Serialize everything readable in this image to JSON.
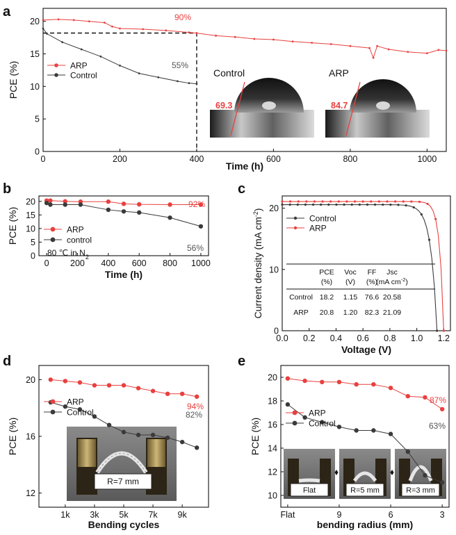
{
  "colors": {
    "arp": "#e8403f",
    "control": "#3a3a3a",
    "dashed": "#000000",
    "annot_arp": "#e8403f",
    "annot_control": "#555555"
  },
  "chart_data": [
    {
      "panel": "a",
      "type": "line",
      "xlabel": "Time (h)",
      "ylabel": "PCE (%)",
      "xlim": [
        0,
        1050
      ],
      "ylim": [
        0,
        22
      ],
      "xticks": [
        0,
        200,
        400,
        600,
        800,
        1000
      ],
      "yticks": [
        0,
        5,
        10,
        15,
        20
      ],
      "legend": [
        "ARP",
        "Control"
      ],
      "legend_position": "left-middle",
      "annotations": [
        "90%",
        "55%"
      ],
      "series": [
        {
          "name": "ARP",
          "x": [
            0,
            40,
            80,
            120,
            160,
            180,
            200,
            260,
            320,
            380,
            400,
            450,
            500,
            550,
            600,
            650,
            700,
            750,
            800,
            850,
            860,
            870,
            900,
            950,
            1000,
            1030,
            1050
          ],
          "y": [
            20.2,
            20.3,
            20.2,
            20.0,
            19.8,
            19.2,
            18.9,
            18.8,
            18.6,
            18.3,
            18.2,
            17.8,
            17.6,
            17.3,
            17.2,
            16.9,
            16.7,
            16.5,
            16.2,
            15.9,
            14.4,
            16.2,
            15.7,
            15.3,
            15.1,
            15.6,
            15.5
          ]
        },
        {
          "name": "Control",
          "x": [
            0,
            10,
            50,
            100,
            150,
            200,
            250,
            300,
            350,
            380,
            400
          ],
          "y": [
            18.9,
            18.1,
            16.8,
            15.7,
            14.6,
            13.2,
            12.0,
            11.4,
            10.8,
            10.5,
            10.4
          ]
        }
      ],
      "insets": [
        {
          "label": "Control",
          "angle": "69.3"
        },
        {
          "label": "ARP",
          "angle": "84.7"
        }
      ]
    },
    {
      "panel": "b",
      "type": "line",
      "xlabel": "Time (h)",
      "ylabel": "PCE (%)",
      "xlim": [
        -50,
        1050
      ],
      "ylim": [
        0,
        22
      ],
      "xticks": [
        0,
        200,
        400,
        600,
        800,
        1000
      ],
      "yticks": [
        0,
        5,
        10,
        15,
        20
      ],
      "legend": [
        "ARP",
        "control"
      ],
      "condition": "80 ℃ in N",
      "condition_subscript": "2",
      "annotations": [
        "92%",
        "56%"
      ],
      "series": [
        {
          "name": "ARP",
          "x": [
            0,
            24,
            120,
            220,
            400,
            500,
            600,
            800,
            1000
          ],
          "y": [
            20.3,
            20.3,
            20.0,
            19.9,
            19.9,
            19.1,
            18.9,
            18.8,
            18.8
          ]
        },
        {
          "name": "control",
          "x": [
            0,
            24,
            120,
            220,
            400,
            500,
            600,
            800,
            1000
          ],
          "y": [
            19.4,
            18.8,
            18.8,
            18.8,
            16.9,
            16.3,
            15.9,
            14.0,
            10.8
          ]
        }
      ]
    },
    {
      "panel": "c",
      "type": "line",
      "xlabel": "Voltage (V)",
      "ylabel_main": "Current density (mA cm",
      "ylabel_sup": "-2",
      "ylabel_end": ")",
      "xlim": [
        0,
        1.25
      ],
      "ylim": [
        0,
        22
      ],
      "xticks": [
        "0.0",
        "0.2",
        "0.4",
        "0.6",
        "0.8",
        "1.0",
        "1.2"
      ],
      "yticks": [
        0,
        10,
        20
      ],
      "legend": [
        "Control",
        "ARP"
      ],
      "series": [
        {
          "name": "Control",
          "jsc": 20.58,
          "voc": 1.15
        },
        {
          "name": "ARP",
          "jsc": 21.09,
          "voc": 1.2
        }
      ],
      "table": {
        "headers": [
          [
            "PCE",
            "(%)"
          ],
          [
            "Voc",
            "(V)"
          ],
          [
            "FF",
            "(%)"
          ],
          [
            "Jsc",
            "(mA cm",
            "-2",
            ")"
          ]
        ],
        "rows": [
          [
            "Control",
            "18.2",
            "1.15",
            "76.6",
            "20.58"
          ],
          [
            "ARP",
            "20.8",
            "1.20",
            "82.3",
            "21.09"
          ]
        ]
      }
    },
    {
      "panel": "d",
      "type": "line",
      "xlabel": "Bending cycles",
      "ylabel": "PCE (%)",
      "xlim": [
        -800,
        10800
      ],
      "ylim": [
        11,
        21
      ],
      "xticks": [
        "1k",
        "3k",
        "5k",
        "7k",
        "9k"
      ],
      "yticks": [
        12,
        16,
        20
      ],
      "legend": [
        "ARP",
        "Control"
      ],
      "annotations": [
        "94%",
        "82%"
      ],
      "inset_label": "R=7 mm",
      "series": [
        {
          "name": "ARP",
          "x": [
            0,
            1000,
            2000,
            3000,
            4000,
            5000,
            6000,
            7000,
            8000,
            9000,
            10000
          ],
          "y": [
            20.0,
            19.9,
            19.8,
            19.6,
            19.6,
            19.6,
            19.4,
            19.2,
            19.0,
            19.0,
            18.8
          ]
        },
        {
          "name": "Control",
          "x": [
            0,
            1000,
            2000,
            3000,
            4000,
            5000,
            6000,
            7000,
            8000,
            9000,
            10000
          ],
          "y": [
            18.4,
            18.1,
            17.9,
            17.4,
            16.8,
            16.3,
            16.1,
            16.1,
            15.9,
            15.6,
            15.2
          ]
        }
      ]
    },
    {
      "panel": "e",
      "type": "line",
      "xlabel": "bending radius (mm)",
      "ylabel": "PCE (%)",
      "xlim": [
        12.4,
        2.6
      ],
      "ylim": [
        9,
        21
      ],
      "xticks": [
        {
          "v": 12,
          "t": "Flat"
        },
        {
          "v": 9,
          "t": "9"
        },
        {
          "v": 6,
          "t": "6"
        },
        {
          "v": 3,
          "t": "3"
        }
      ],
      "yticks": [
        10,
        12,
        14,
        16,
        18,
        20
      ],
      "legend": [
        "ARP",
        "Control"
      ],
      "annotations": [
        "87%",
        "63%"
      ],
      "inset_labels": [
        "Flat",
        "R=5 mm",
        "R=3 mm"
      ],
      "series": [
        {
          "name": "ARP",
          "x": [
            12,
            11,
            10,
            9,
            8,
            7,
            6,
            5,
            4,
            3
          ],
          "y": [
            19.9,
            19.7,
            19.6,
            19.6,
            19.4,
            19.4,
            19.1,
            18.4,
            18.3,
            17.3
          ]
        },
        {
          "name": "Control",
          "x": [
            12,
            11,
            10,
            9,
            8,
            7,
            6,
            5,
            4,
            3
          ],
          "y": [
            17.7,
            16.6,
            16.2,
            15.8,
            15.5,
            15.5,
            15.2,
            13.7,
            11.7,
            11.1
          ]
        }
      ]
    }
  ],
  "panel_letters": [
    "a",
    "b",
    "c",
    "d",
    "e"
  ]
}
